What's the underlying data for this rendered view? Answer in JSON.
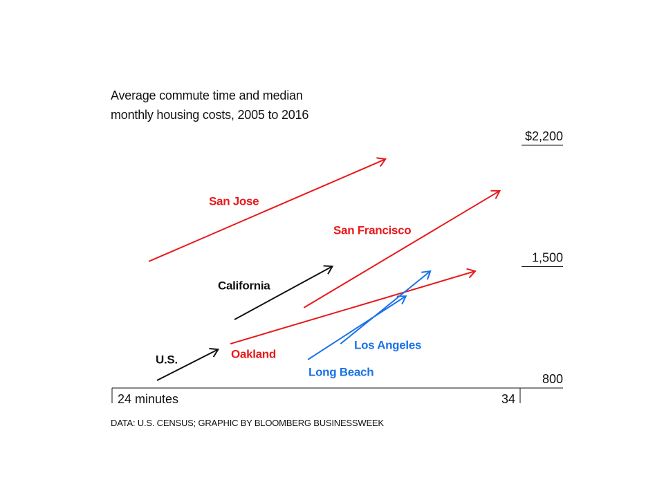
{
  "chart_data": {
    "type": "arrow",
    "title": "Average commute time and median monthly housing costs, 2005 to 2016",
    "source": "DATA: U.S. CENSUS; GRAPHIC BY BLOOMBERG BUSINESSWEEK",
    "xlim": [
      24,
      34
    ],
    "xticks": [
      {
        "value": 24,
        "label": "24 minutes"
      },
      34
    ],
    "ylim": [
      800,
      2200
    ],
    "yticks": [
      {
        "value": 2200,
        "label": "$2,200"
      },
      {
        "value": 1500,
        "label": "1,500"
      },
      800
    ],
    "series": [
      {
        "name": "San Jose",
        "color": "#e8191b",
        "x": [
          24.9,
          30.7
        ],
        "values": [
          1530,
          2120
        ]
      },
      {
        "name": "San Francisco",
        "color": "#e8191b",
        "x": [
          28.7,
          33.5
        ],
        "values": [
          1263,
          1937
        ]
      },
      {
        "name": "California",
        "color": "#111111",
        "x": [
          27.0,
          29.4
        ],
        "values": [
          1195,
          1502
        ]
      },
      {
        "name": "Oakland",
        "color": "#e8191b",
        "x": [
          26.9,
          32.9
        ],
        "values": [
          1055,
          1474
        ]
      },
      {
        "name": "Los Angeles",
        "color": "#1a73e8",
        "x": [
          29.6,
          31.8
        ],
        "values": [
          1055,
          1474
        ]
      },
      {
        "name": "U.S.",
        "color": "#111111",
        "x": [
          25.1,
          26.6
        ],
        "values": [
          844,
          1023
        ]
      },
      {
        "name": "Long Beach",
        "color": "#1a73e8",
        "x": [
          28.8,
          31.2
        ],
        "values": [
          964,
          1330
        ]
      }
    ]
  }
}
